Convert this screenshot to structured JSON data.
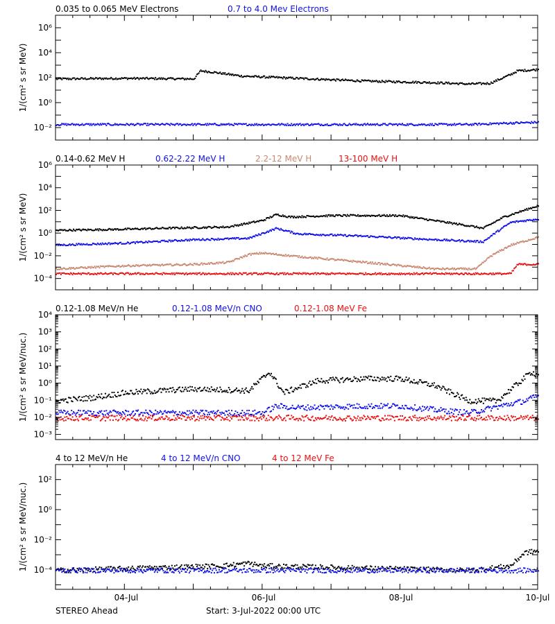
{
  "colors": {
    "black": "#000000",
    "blue": "#1010e8",
    "tan": "#c88870",
    "red": "#e81010"
  },
  "footer": {
    "left": "STEREO Ahead",
    "start": "Start:  3-Jul-2022 00:00 UTC",
    "x_ticks": [
      "04-Jul",
      "06-Jul",
      "08-Jul",
      "10-Jul"
    ]
  },
  "chart_data": [
    {
      "type": "scatter",
      "ylabel": "1/(cm² s sr MeV)",
      "log_y": true,
      "ylim": [
        0.001,
        10000000
      ],
      "y_ticks": [
        {
          "v": 0.01,
          "label": "10⁻²"
        },
        {
          "v": 1,
          "label": "10⁰"
        },
        {
          "v": 100,
          "label": "10²"
        },
        {
          "v": 10000,
          "label": "10⁴"
        },
        {
          "v": 1000000,
          "label": "10⁶"
        }
      ],
      "xlim_days": [
        3,
        10
      ],
      "series": [
        {
          "name": "0.035 to 0.065 MeV Electrons",
          "color": "black",
          "points": [
            [
              3.0,
              90
            ],
            [
              4.0,
              100
            ],
            [
              5.0,
              90
            ],
            [
              5.1,
              400
            ],
            [
              5.3,
              300
            ],
            [
              5.7,
              150
            ],
            [
              6.5,
              100
            ],
            [
              7.5,
              60
            ],
            [
              8.5,
              45
            ],
            [
              9.0,
              35
            ],
            [
              9.3,
              40
            ],
            [
              9.6,
              200
            ],
            [
              9.7,
              400
            ],
            [
              10.0,
              500
            ]
          ]
        },
        {
          "name": "0.7 to 4.0 Mev Electrons",
          "color": "blue",
          "points": [
            [
              3.0,
              0.02
            ],
            [
              5.0,
              0.02
            ],
            [
              7.0,
              0.02
            ],
            [
              9.0,
              0.02
            ],
            [
              9.5,
              0.025
            ],
            [
              10.0,
              0.03
            ]
          ]
        }
      ]
    },
    {
      "type": "scatter",
      "ylabel": "1/(cm² s sr MeV)",
      "log_y": true,
      "ylim": [
        1e-05,
        1000000
      ],
      "y_ticks": [
        {
          "v": 0.0001,
          "label": "10⁻⁴"
        },
        {
          "v": 0.01,
          "label": "10⁻²"
        },
        {
          "v": 1,
          "label": "10⁰"
        },
        {
          "v": 100,
          "label": "10²"
        },
        {
          "v": 10000,
          "label": "10⁴"
        },
        {
          "v": 1000000,
          "label": "10⁶"
        }
      ],
      "xlim_days": [
        3,
        10
      ],
      "series": [
        {
          "name": "0.14-0.62 MeV H",
          "color": "black",
          "points": [
            [
              3.0,
              2
            ],
            [
              4.0,
              2.5
            ],
            [
              4.5,
              3
            ],
            [
              5.5,
              4
            ],
            [
              6.0,
              15
            ],
            [
              6.2,
              50
            ],
            [
              6.4,
              30
            ],
            [
              7.0,
              40
            ],
            [
              8.0,
              40
            ],
            [
              9.0,
              5
            ],
            [
              9.2,
              3
            ],
            [
              9.5,
              30
            ],
            [
              10.0,
              300
            ]
          ]
        },
        {
          "name": "0.62-2.22 MeV H",
          "color": "blue",
          "points": [
            [
              3.0,
              0.1
            ],
            [
              4.0,
              0.15
            ],
            [
              5.0,
              0.3
            ],
            [
              5.8,
              0.4
            ],
            [
              6.2,
              3
            ],
            [
              6.5,
              1
            ],
            [
              7.5,
              0.6
            ],
            [
              8.5,
              0.3
            ],
            [
              9.2,
              0.2
            ],
            [
              9.4,
              1.5
            ],
            [
              9.6,
              10
            ],
            [
              10.0,
              20
            ]
          ]
        },
        {
          "name": "2.2-12 MeV H",
          "color": "tan",
          "points": [
            [
              3.0,
              0.0008
            ],
            [
              4.0,
              0.0015
            ],
            [
              5.0,
              0.002
            ],
            [
              5.5,
              0.003
            ],
            [
              5.8,
              0.015
            ],
            [
              6.0,
              0.02
            ],
            [
              6.5,
              0.01
            ],
            [
              7.5,
              0.003
            ],
            [
              8.5,
              0.0008
            ],
            [
              9.1,
              0.0008
            ],
            [
              9.3,
              0.01
            ],
            [
              9.6,
              0.1
            ],
            [
              10.0,
              0.5
            ]
          ]
        },
        {
          "name": "13-100 MeV H",
          "color": "red",
          "points": [
            [
              3.0,
              0.0003
            ],
            [
              6.0,
              0.0003
            ],
            [
              9.4,
              0.0003
            ],
            [
              9.6,
              0.0003
            ],
            [
              9.7,
              0.002
            ],
            [
              10.0,
              0.002
            ]
          ]
        }
      ]
    },
    {
      "type": "scatter",
      "ylabel": "1/(cm² s sr MeV/nuc.)",
      "log_y": true,
      "ylim": [
        0.0005,
        10000
      ],
      "y_ticks": [
        {
          "v": 0.001,
          "label": "10⁻³"
        },
        {
          "v": 0.01,
          "label": "10⁻²"
        },
        {
          "v": 0.1,
          "label": "10⁻¹"
        },
        {
          "v": 1,
          "label": "10⁰"
        },
        {
          "v": 10,
          "label": "10¹"
        },
        {
          "v": 100,
          "label": "10²"
        },
        {
          "v": 1000,
          "label": "10³"
        },
        {
          "v": 10000,
          "label": "10⁴"
        }
      ],
      "xlim_days": [
        3,
        10
      ],
      "series": [
        {
          "name": "0.12-1.08 MeV/n He",
          "color": "black",
          "points": [
            [
              3.0,
              0.1
            ],
            [
              3.5,
              0.15
            ],
            [
              4.0,
              0.3
            ],
            [
              5.0,
              0.5
            ],
            [
              5.8,
              0.4
            ],
            [
              6.1,
              5
            ],
            [
              6.3,
              0.3
            ],
            [
              6.8,
              1.5
            ],
            [
              7.5,
              2
            ],
            [
              8.0,
              2
            ],
            [
              8.5,
              0.8
            ],
            [
              9.0,
              0.1
            ],
            [
              9.4,
              0.1
            ],
            [
              9.7,
              1
            ],
            [
              9.9,
              5
            ],
            [
              10.0,
              3
            ]
          ]
        },
        {
          "name": "0.12-1.08 MeV/n CNO",
          "color": "blue",
          "points": [
            [
              3.0,
              0.02
            ],
            [
              6.0,
              0.02
            ],
            [
              6.2,
              0.05
            ],
            [
              6.5,
              0.04
            ],
            [
              7.5,
              0.05
            ],
            [
              8.0,
              0.05
            ],
            [
              8.5,
              0.03
            ],
            [
              9.0,
              0.02
            ],
            [
              9.8,
              0.1
            ],
            [
              10.0,
              0.2
            ]
          ]
        },
        {
          "name": "0.12-1.08 MeV Fe",
          "color": "red",
          "points": [
            [
              3.0,
              0.01
            ],
            [
              5.0,
              0.01
            ],
            [
              7.0,
              0.01
            ],
            [
              9.0,
              0.01
            ],
            [
              10.0,
              0.01
            ]
          ]
        }
      ]
    },
    {
      "type": "scatter",
      "ylabel": "1/(cm² s sr MeV/nuc.)",
      "log_y": true,
      "ylim": [
        5e-06,
        1000
      ],
      "y_ticks": [
        {
          "v": 0.0001,
          "label": "10⁻⁴"
        },
        {
          "v": 0.01,
          "label": "10⁻²"
        },
        {
          "v": 1,
          "label": "10⁰"
        },
        {
          "v": 100,
          "label": "10²"
        }
      ],
      "xlim_days": [
        3,
        10
      ],
      "series": [
        {
          "name": "4 to 12 MeV/n He",
          "color": "black",
          "points": [
            [
              3.0,
              0.0001
            ],
            [
              5.4,
              0.0002
            ],
            [
              5.8,
              0.0003
            ],
            [
              6.0,
              0.0002
            ],
            [
              9.0,
              0.0001
            ],
            [
              9.6,
              0.0002
            ],
            [
              9.8,
              0.0015
            ],
            [
              10.0,
              0.002
            ]
          ]
        },
        {
          "name": "4 to 12 MeV/n CNO",
          "color": "blue",
          "points": [
            [
              3.0,
              0.0001
            ],
            [
              6.0,
              0.0001
            ],
            [
              9.0,
              0.0001
            ],
            [
              10.0,
              0.0001
            ]
          ]
        },
        {
          "name": "4 to 12 MeV Fe",
          "color": "red",
          "points": []
        }
      ]
    }
  ]
}
